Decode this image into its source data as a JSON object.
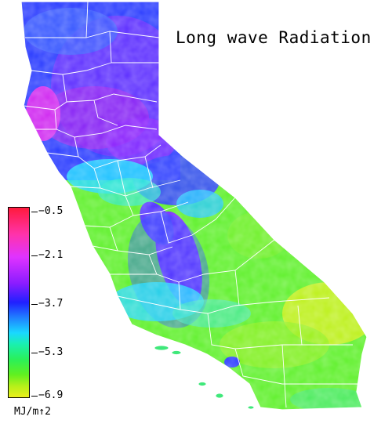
{
  "title": "Long wave Radiation",
  "colorbar": {
    "unit": "MJ/m↑2",
    "ticks": [
      "−0.5",
      "−2.1",
      "−3.7",
      "−5.3",
      "−6.9"
    ],
    "min": -6.9,
    "max": -0.5,
    "colors": [
      "#ff1a3c",
      "#e033ff",
      "#8a1cff",
      "#2020ff",
      "#1ad8ff",
      "#2af05a",
      "#b4f01a",
      "#ebf01a"
    ]
  },
  "map": {
    "region": "California",
    "boundaries": "county lines"
  }
}
